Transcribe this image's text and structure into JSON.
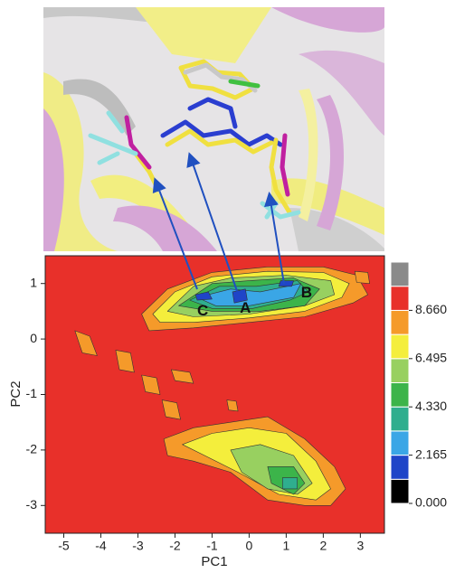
{
  "chart_data": {
    "type": "contour",
    "xlabel": "PC1",
    "ylabel": "PC2",
    "xlim": [
      -5.5,
      3.65
    ],
    "ylim": [
      -3.5,
      1.5
    ],
    "xticks": [
      -5,
      -4,
      -3,
      -2,
      -1,
      0,
      1,
      2,
      3
    ],
    "yticks": [
      -3,
      -2,
      -1,
      0,
      1
    ],
    "background_level": 9.2,
    "colorbar": {
      "lim": [
        0,
        10.825
      ],
      "colors": [
        "#000000",
        "#1f45c8",
        "#3aa6e6",
        "#2fae8e",
        "#3cb44a",
        "#98d060",
        "#f4ee3c",
        "#f59a2a",
        "#e8302a",
        "#8a8a8a"
      ],
      "ticks": [
        {
          "value": 8.66,
          "label": "8.660"
        },
        {
          "value": 6.495,
          "label": "6.495"
        },
        {
          "value": 4.33,
          "label": "4.330"
        },
        {
          "value": 2.165,
          "label": "2.165"
        },
        {
          "value": 0,
          "label": "0.000"
        }
      ]
    },
    "contours": [
      {
        "level": 8,
        "x": [
          -2.9,
          -2.2,
          -1,
          0.5,
          2,
          2.9,
          3.2,
          2.8,
          1.5,
          0,
          -1.5,
          -2.7
        ],
        "y": [
          0.45,
          0.9,
          1.2,
          1.3,
          1.3,
          1.15,
          0.8,
          0.65,
          0.4,
          0.3,
          0.2,
          0.15
        ]
      },
      {
        "level": 7,
        "x": [
          -2.6,
          -2,
          -1,
          0.5,
          2,
          2.7,
          2.5,
          1.5,
          0,
          -1.5,
          -2.4
        ],
        "y": [
          0.45,
          0.85,
          1.12,
          1.22,
          1.2,
          1.0,
          0.75,
          0.5,
          0.38,
          0.3,
          0.3
        ]
      },
      {
        "level": 6,
        "x": [
          -2.2,
          -1.5,
          -0.5,
          1,
          2.2,
          2.3,
          1.5,
          0,
          -1.5
        ],
        "y": [
          0.5,
          0.95,
          1.1,
          1.15,
          1.05,
          0.8,
          0.6,
          0.45,
          0.4
        ]
      },
      {
        "level": 5,
        "x": [
          -1.9,
          -1,
          0,
          1.2,
          1.9,
          1.5,
          0.3,
          -1
        ],
        "y": [
          0.6,
          1.0,
          1.05,
          1.1,
          0.9,
          0.6,
          0.5,
          0.5
        ]
      },
      {
        "level": 3.8,
        "x": [
          -1.6,
          -0.8,
          0.2,
          1.3,
          1.6,
          1.1,
          0.1,
          -1
        ],
        "y": [
          0.7,
          0.95,
          0.95,
          1.05,
          0.85,
          0.7,
          0.55,
          0.55
        ]
      },
      {
        "level": 2.7,
        "x": [
          -1.4,
          -0.5,
          0.3,
          1.4,
          1.2,
          0,
          -0.9
        ],
        "y": [
          0.75,
          0.9,
          0.85,
          1.0,
          0.75,
          0.6,
          0.6
        ]
      },
      {
        "level": 1.6,
        "x": [
          -1.45,
          -1.1,
          -1.0,
          -1.4
        ],
        "y": [
          0.8,
          0.85,
          0.72,
          0.7
        ]
      },
      {
        "level": 1.6,
        "x": [
          -0.45,
          -0.1,
          -0.05,
          -0.4
        ],
        "y": [
          0.85,
          0.9,
          0.7,
          0.65
        ]
      },
      {
        "level": 1.6,
        "x": [
          0.85,
          1.2,
          1.15,
          0.8
        ],
        "y": [
          1.05,
          1.05,
          0.95,
          0.95
        ]
      },
      {
        "level": 8,
        "x": [
          -4.7,
          -4.3,
          -4.1,
          -4.5
        ],
        "y": [
          0.15,
          0.05,
          -0.3,
          -0.25
        ]
      },
      {
        "level": 8,
        "x": [
          -3.6,
          -3.2,
          -3.1,
          -3.5
        ],
        "y": [
          -0.2,
          -0.25,
          -0.6,
          -0.55
        ]
      },
      {
        "level": 8,
        "x": [
          -2.9,
          -2.5,
          -2.4,
          -2.8
        ],
        "y": [
          -0.65,
          -0.7,
          -1.0,
          -0.95
        ]
      },
      {
        "level": 8,
        "x": [
          -2.35,
          -1.95,
          -1.85,
          -2.25
        ],
        "y": [
          -1.1,
          -1.15,
          -1.45,
          -1.4
        ]
      },
      {
        "level": 8,
        "x": [
          2.85,
          3.2,
          3.25,
          2.9
        ],
        "y": [
          1.22,
          1.2,
          1.0,
          1.02
        ]
      },
      {
        "level": 8,
        "x": [
          -0.6,
          -0.35,
          -0.3,
          -0.55
        ],
        "y": [
          -1.1,
          -1.12,
          -1.3,
          -1.28
        ]
      },
      {
        "level": 8,
        "x": [
          -2.1,
          -1.6,
          -1.5,
          -2.0
        ],
        "y": [
          -0.55,
          -0.6,
          -0.8,
          -0.75
        ]
      },
      {
        "level": 8,
        "x": [
          -2.3,
          -1.5,
          -0.5,
          0.5,
          1.5,
          2.3,
          2.6,
          2.2,
          1.5,
          0.5,
          -0.5,
          -1.5,
          -2.2
        ],
        "y": [
          -1.8,
          -1.6,
          -1.5,
          -1.4,
          -1.8,
          -2.3,
          -2.7,
          -3.0,
          -3.0,
          -2.9,
          -2.4,
          -2.2,
          -2.1
        ]
      },
      {
        "level": 7,
        "x": [
          -1.8,
          -1,
          0,
          1,
          1.8,
          2.2,
          1.8,
          0.8,
          -0.3,
          -1.2
        ],
        "y": [
          -1.9,
          -1.7,
          -1.6,
          -1.7,
          -2.2,
          -2.7,
          -2.9,
          -2.8,
          -2.4,
          -2.1
        ]
      },
      {
        "level": 6,
        "x": [
          -0.5,
          0.3,
          1.2,
          1.7,
          1.3,
          0.5,
          -0.2
        ],
        "y": [
          -2.0,
          -1.9,
          -2.1,
          -2.6,
          -2.8,
          -2.7,
          -2.4
        ]
      },
      {
        "level": 5,
        "x": [
          0.5,
          1.2,
          1.5,
          1.2,
          0.6
        ],
        "y": [
          -2.3,
          -2.3,
          -2.6,
          -2.8,
          -2.6
        ]
      },
      {
        "level": 3.8,
        "x": [
          0.9,
          1.3,
          1.3,
          0.9
        ],
        "y": [
          -2.5,
          -2.5,
          -2.7,
          -2.7
        ]
      }
    ],
    "annotations": [
      {
        "text": "C",
        "x": -1.25,
        "y": 0.5
      },
      {
        "text": "A",
        "x": -0.1,
        "y": 0.55
      },
      {
        "text": "B",
        "x": 1.55,
        "y": 0.82
      }
    ]
  }
}
